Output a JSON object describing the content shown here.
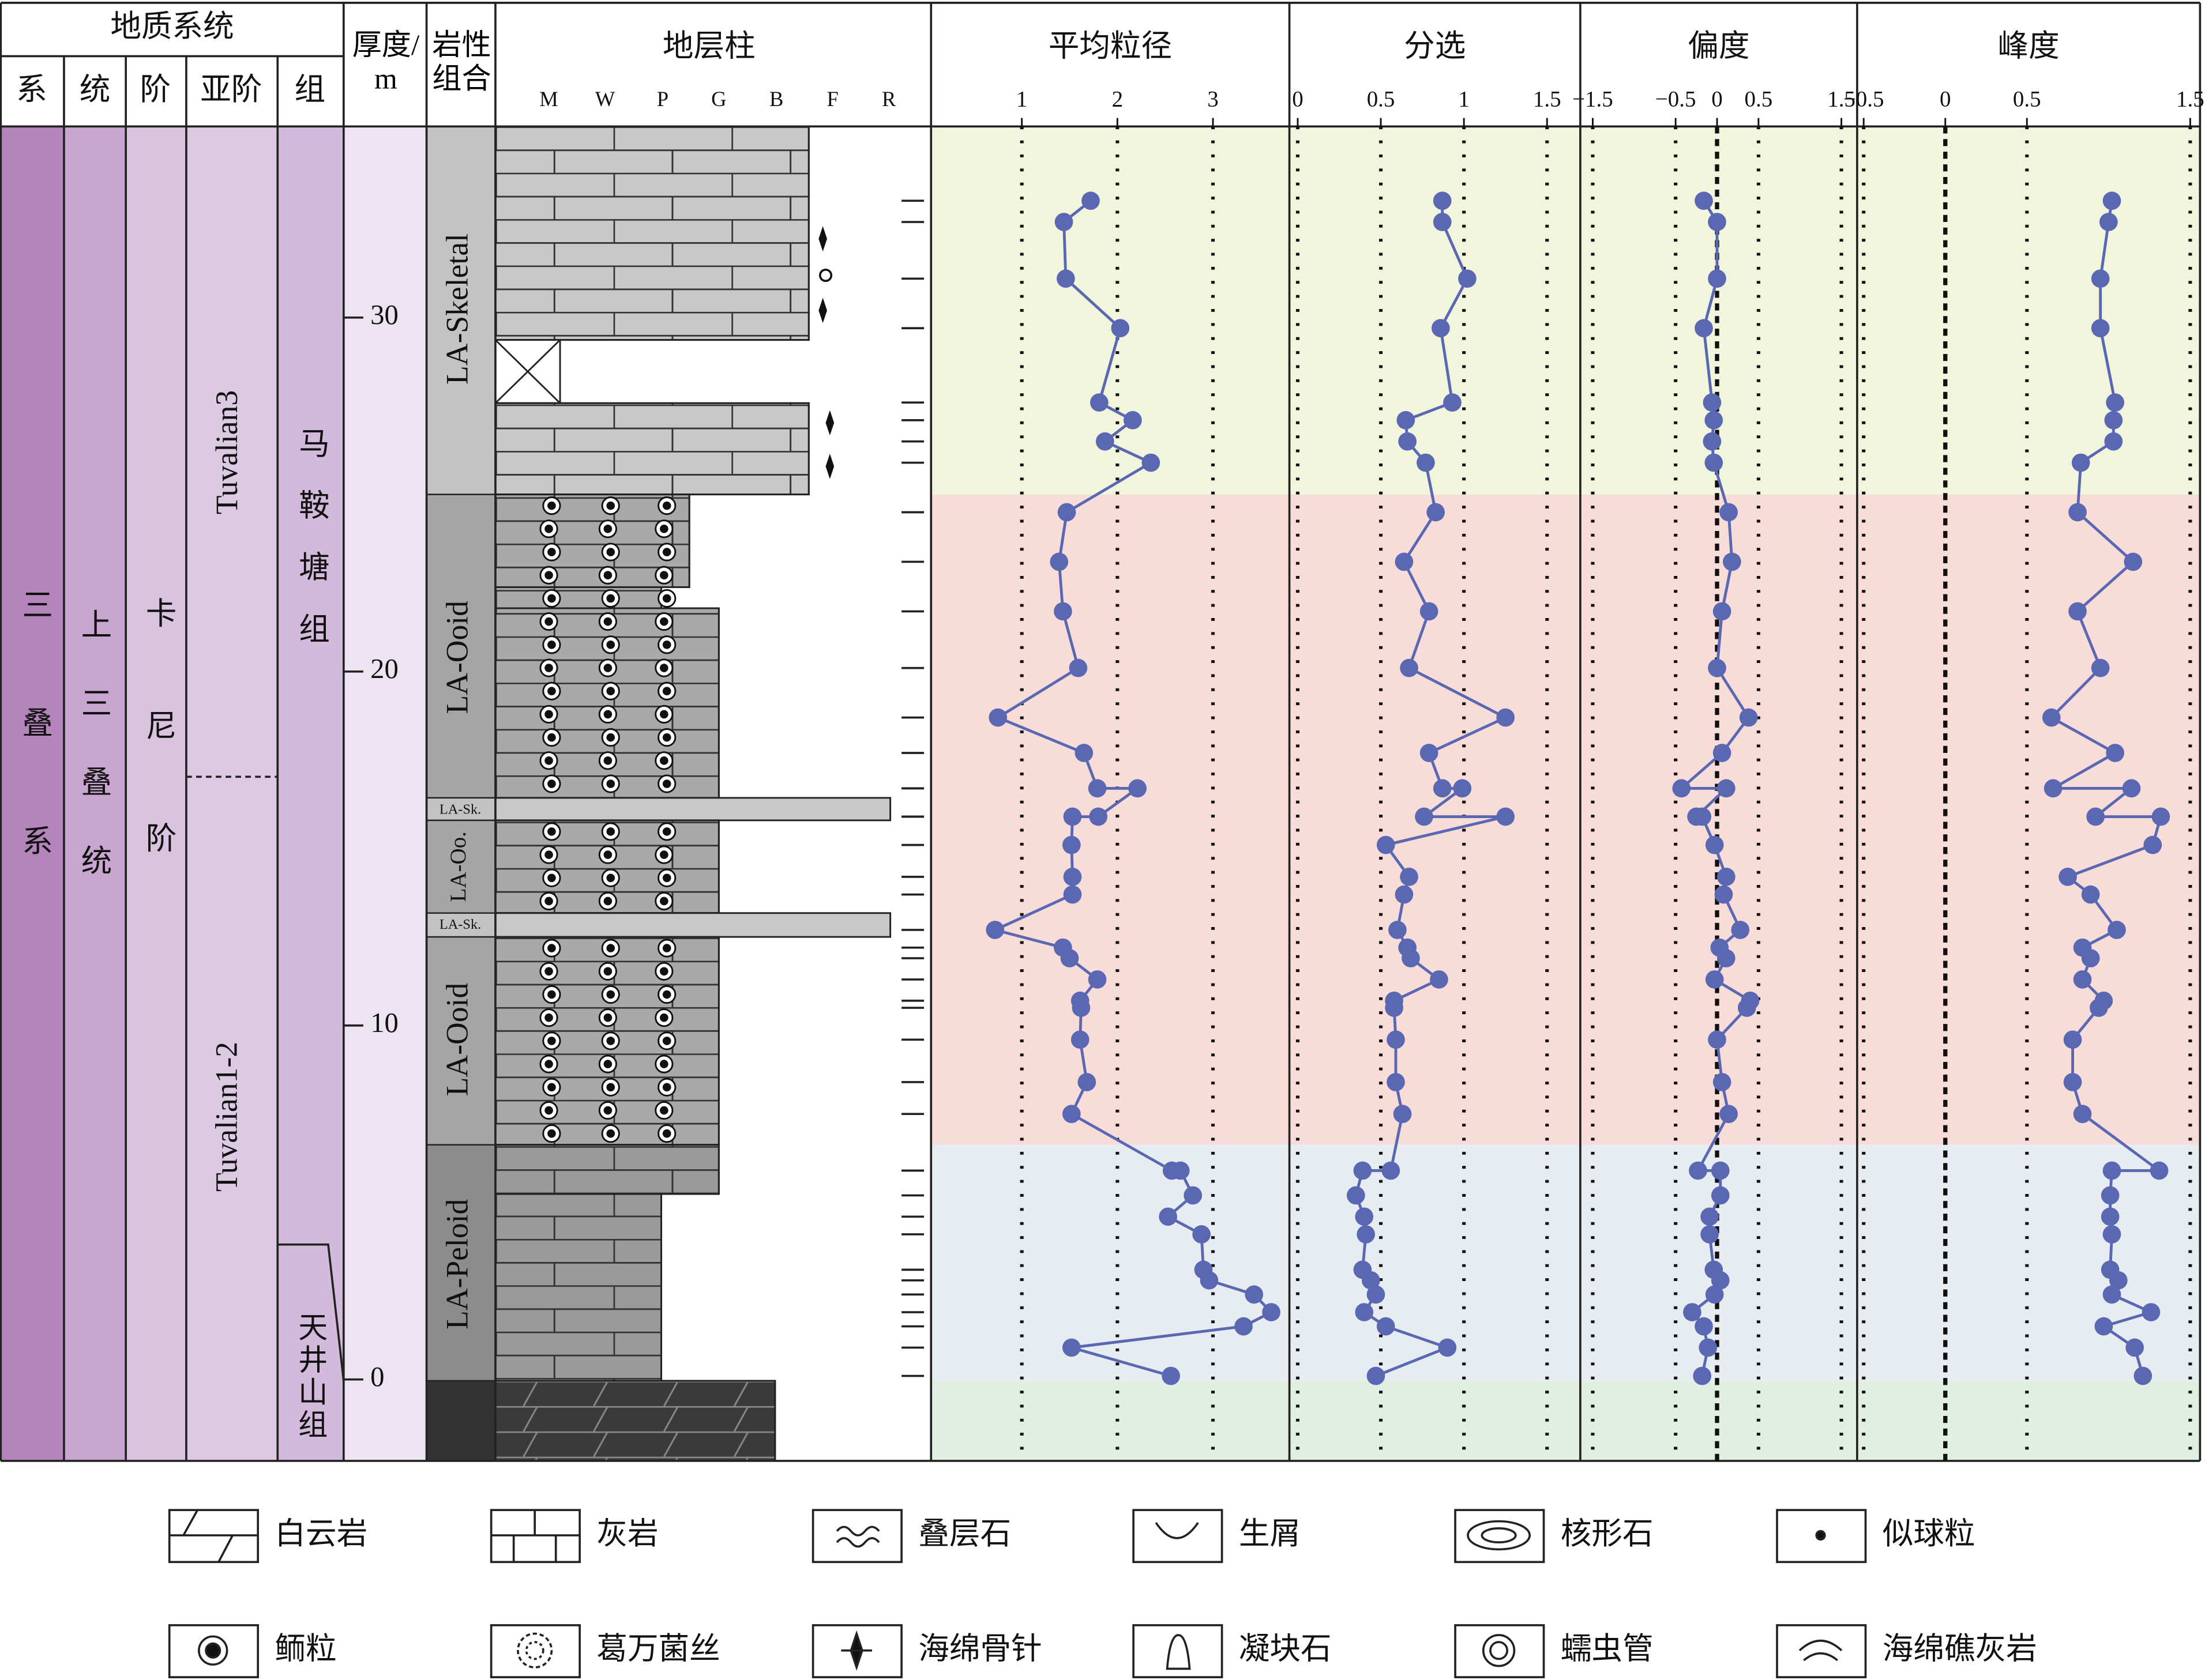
{
  "header": {
    "geo_system": "地质系统",
    "cols": [
      "系",
      "统",
      "阶",
      "亚阶",
      "组"
    ],
    "thickness": "厚度/m",
    "litho_assoc": "岩性组合",
    "column": "地层柱",
    "grain_classes": [
      "M",
      "W",
      "P",
      "G",
      "B",
      "F",
      "R"
    ]
  },
  "units": {
    "system": "三叠系",
    "series": "上三叠统",
    "stage": "卡尼阶",
    "substages": [
      "Tuvalian3",
      "Tuvalian1-2"
    ],
    "formations": [
      "马鞍塘组",
      "天井山组"
    ]
  },
  "litho": [
    "LA-Skeletal",
    "LA-Ooid",
    "LA-Sk.",
    "LA-Oo.",
    "LA-Sk.",
    "LA-Ooid",
    "LA-Peloid"
  ],
  "legend": [
    "白云岩",
    "灰岩",
    "叠层石",
    "生屑",
    "核形石",
    "似球粒",
    "鲕粒",
    "葛万菌丝",
    "海绵骨针",
    "凝块石",
    "蠕虫管",
    "海绵礁灰岩"
  ],
  "chart_data": {
    "type": "line",
    "ylim": [
      -2.3,
      35.4
    ],
    "yticks": [
      0,
      10,
      20,
      30
    ],
    "y": [
      33.3,
      32.7,
      31.1,
      29.7,
      27.6,
      27.1,
      26.5,
      25.9,
      24.5,
      23.1,
      21.7,
      20.1,
      18.7,
      17.7,
      16.7,
      16.7,
      15.9,
      15.9,
      15.1,
      14.2,
      13.7,
      12.7,
      12.2,
      11.9,
      11.3,
      10.7,
      10.5,
      9.6,
      8.4,
      7.5,
      5.9,
      5.9,
      5.2,
      4.6,
      4.1,
      3.1,
      2.8,
      2.4,
      1.9,
      1.5,
      0.9,
      0.1
    ],
    "series": [
      {
        "name": "平均粒径",
        "color": "#5a67b2",
        "xlim": [
          0.05,
          3.8
        ],
        "xticks": [
          1,
          2,
          3
        ],
        "values": [
          1.72,
          1.44,
          1.46,
          2.03,
          1.81,
          2.16,
          1.87,
          2.35,
          1.47,
          1.39,
          1.43,
          1.59,
          0.75,
          1.65,
          1.79,
          2.21,
          1.8,
          1.53,
          1.52,
          1.53,
          1.53,
          0.72,
          1.43,
          1.5,
          1.79,
          1.61,
          1.62,
          1.61,
          1.68,
          1.52,
          2.57,
          2.66,
          2.79,
          2.53,
          2.88,
          2.9,
          2.96,
          3.43,
          3.61,
          3.32,
          1.52,
          2.56
        ]
      },
      {
        "name": "分选",
        "color": "#5a67b2",
        "xlim": [
          -0.05,
          1.7
        ],
        "xticks": [
          0,
          0.5,
          1,
          1.5
        ],
        "values": [
          0.87,
          0.87,
          1.02,
          0.86,
          0.93,
          0.65,
          0.66,
          0.77,
          0.83,
          0.64,
          0.79,
          0.67,
          1.25,
          0.79,
          0.87,
          0.99,
          0.76,
          1.25,
          0.53,
          0.67,
          0.64,
          0.6,
          0.66,
          0.68,
          0.85,
          0.58,
          0.58,
          0.59,
          0.59,
          0.63,
          0.56,
          0.39,
          0.35,
          0.4,
          0.41,
          0.39,
          0.44,
          0.47,
          0.4,
          0.53,
          0.9,
          0.47
        ]
      },
      {
        "name": "偏度",
        "color": "#5a67b2",
        "xlim": [
          -1.65,
          1.69
        ],
        "zero_line": true,
        "xticks": [
          {
            "value": -1.5,
            "label": "−1.5"
          },
          {
            "value": -0.5,
            "label": "−0.5"
          },
          0,
          0.5,
          1.5
        ],
        "values": [
          -0.16,
          0,
          0,
          -0.16,
          -0.06,
          -0.04,
          -0.06,
          -0.04,
          0.14,
          0.18,
          0.06,
          0,
          0.38,
          0.06,
          -0.43,
          0.11,
          -0.25,
          -0.18,
          -0.03,
          0.11,
          0.08,
          0.28,
          0.03,
          0.11,
          -0.03,
          0.4,
          0.36,
          0,
          0.06,
          0.14,
          -0.23,
          0.04,
          0.04,
          -0.09,
          -0.09,
          -0.04,
          0.04,
          -0.03,
          -0.3,
          -0.16,
          -0.11,
          -0.18
        ]
      },
      {
        "name": "峰度",
        "color": "#5a67b2",
        "xlim": [
          -0.54,
          1.56
        ],
        "zero_line": true,
        "xticks": [
          {
            "value": -0.5,
            "label": "−0.5"
          },
          0,
          0.5,
          1.5
        ],
        "values": [
          1.02,
          1.0,
          0.95,
          0.95,
          1.04,
          1.03,
          1.03,
          0.83,
          0.81,
          1.15,
          0.81,
          0.95,
          0.65,
          1.04,
          0.66,
          1.14,
          0.92,
          1.32,
          1.27,
          0.75,
          0.89,
          1.05,
          0.84,
          0.89,
          0.84,
          0.97,
          0.94,
          0.78,
          0.78,
          0.84,
          1.31,
          1.02,
          1.01,
          1.01,
          1.02,
          1.01,
          1.06,
          1.02,
          1.26,
          0.97,
          1.16,
          1.21
        ]
      }
    ]
  }
}
